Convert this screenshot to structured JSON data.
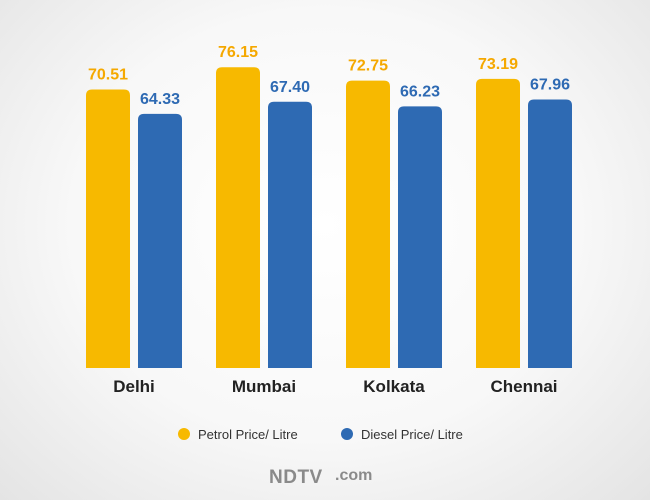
{
  "chart_data": {
    "type": "bar",
    "categories": [
      "Delhi",
      "Mumbai",
      "Kolkata",
      "Chennai"
    ],
    "series": [
      {
        "name": "Petrol Price/ Litre",
        "color": "#f7b900",
        "values": [
          70.51,
          76.15,
          72.75,
          73.19
        ],
        "labels": [
          "70.51",
          "76.15",
          "72.75",
          "73.19"
        ]
      },
      {
        "name": "Diesel Price/ Litre",
        "color": "#2e6ab3",
        "values": [
          64.33,
          67.4,
          66.23,
          67.96
        ],
        "labels": [
          "64.33",
          "67.40",
          "66.23",
          "67.96"
        ]
      }
    ],
    "title": "",
    "xlabel": "",
    "ylabel": "",
    "ylim": [
      0,
      80
    ],
    "grid": false,
    "legend_position": "bottom-center",
    "label_colors": {
      "petrol": "#f5a800",
      "diesel": "#2e6ab3"
    }
  },
  "branding": {
    "logo_text": "NDTV",
    "logo_suffix": ".com"
  }
}
